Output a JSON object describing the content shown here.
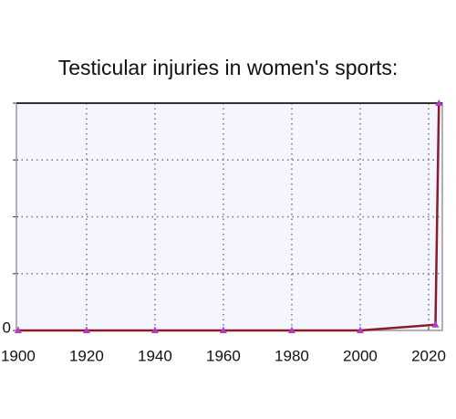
{
  "chart_data": {
    "type": "line",
    "title": "Testicular injuries in women's sports:",
    "x": [
      1900,
      1920,
      1940,
      1960,
      1980,
      2000,
      2022,
      2023
    ],
    "series": [
      {
        "color": "#8b1a2a",
        "values": [
          0,
          0,
          0,
          0,
          0,
          0,
          0.1,
          4
        ]
      }
    ],
    "marker_color": "#b23cc4",
    "xlim": [
      1899.5,
      2024
    ],
    "xticks": [
      1900,
      1920,
      1940,
      1960,
      1980,
      2000,
      2020
    ],
    "ylim": [
      0,
      4
    ],
    "yticks": [
      0
    ],
    "y_unlabeled_ticks": [
      1,
      2,
      3,
      4
    ],
    "grid": true
  }
}
